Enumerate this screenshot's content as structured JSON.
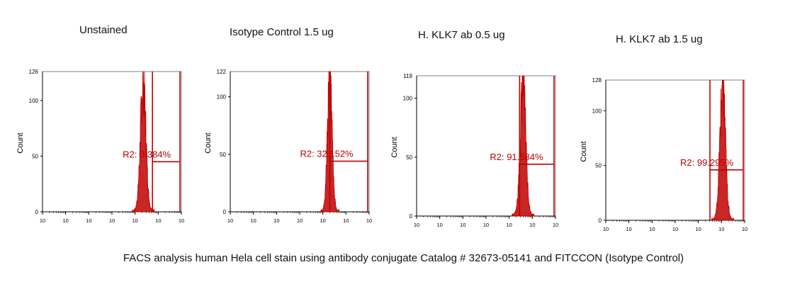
{
  "caption": "FACS analysis human Hela cell stain using antibody conjugate Catalog # 32673-05141 and FITCCON (Isotype Control)",
  "colors": {
    "histogram": "#c00000",
    "axis": "#000000",
    "frame": "#808080"
  },
  "chart_data": [
    {
      "type": "area",
      "title": "Unstained",
      "ylabel": "Count",
      "ymax_label": "126",
      "ylim": [
        0,
        126
      ],
      "yticks": [
        "0",
        "50",
        "100"
      ],
      "ytick_values": [
        0,
        50,
        100
      ],
      "xscale": "log",
      "xticks": [
        "10",
        "10",
        "10",
        "10",
        "10",
        "10",
        "10"
      ],
      "peak": {
        "center_decade": 4.35,
        "sigma": 0.12,
        "height": 115
      },
      "gate": {
        "label": "R2: 0.384%",
        "start_decade": 4.75,
        "end_decade": 6.0,
        "level": 45
      }
    },
    {
      "type": "area",
      "title": "Isotype Control 1.5 ug",
      "ylabel": "Count",
      "ymax_label": "122",
      "ylim": [
        0,
        122
      ],
      "yticks": [
        "0",
        "50",
        "100"
      ],
      "ytick_values": [
        0,
        50,
        100
      ],
      "xscale": "log",
      "xticks": [
        "10",
        "10",
        "10",
        "10",
        "10",
        "10",
        "10"
      ],
      "peak": {
        "center_decade": 4.3,
        "sigma": 0.1,
        "height": 118
      },
      "gate": {
        "label": "R2: 32.152%",
        "start_decade": 4.3,
        "end_decade": 6.0,
        "level": 44
      }
    },
    {
      "type": "area",
      "title": "H. KLK7 ab 0.5 ug",
      "ylabel": "Count",
      "ymax_label": "119",
      "ylim": [
        0,
        119
      ],
      "yticks": [
        "0",
        "50",
        "100"
      ],
      "ytick_values": [
        0,
        50,
        100
      ],
      "xscale": "log",
      "xticks": [
        "10",
        "10",
        "10",
        "10",
        "10",
        "10",
        "10"
      ],
      "peak": {
        "center_decade": 4.6,
        "sigma": 0.12,
        "height": 113
      },
      "gate": {
        "label": "R2: 91.584%",
        "start_decade": 4.45,
        "end_decade": 6.0,
        "level": 44
      }
    },
    {
      "type": "area",
      "title": "H. KLK7 ab 1.5 ug",
      "ylabel": "Count",
      "ymax_label": "128",
      "ylim": [
        0,
        128
      ],
      "yticks": [
        "0",
        "50",
        "100"
      ],
      "ytick_values": [
        0,
        50,
        100
      ],
      "xscale": "log",
      "xticks": [
        "10",
        "10",
        "10",
        "10",
        "10",
        "10",
        "10"
      ],
      "peak": {
        "center_decade": 5.05,
        "sigma": 0.12,
        "height": 123
      },
      "gate": {
        "label": "R2: 99.295%",
        "start_decade": 4.5,
        "end_decade": 6.0,
        "level": 46
      }
    }
  ]
}
